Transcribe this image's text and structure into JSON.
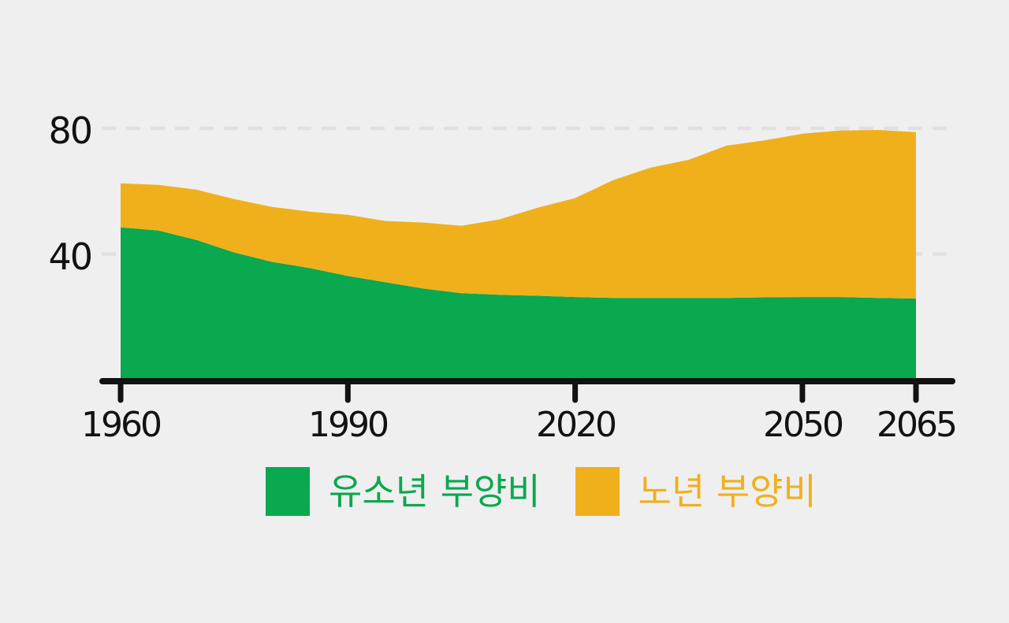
{
  "colors": {
    "background": "#efefef",
    "youth_green": "#0aa84f",
    "elderly_yellow": "#f0b01c",
    "axis_black": "#121212",
    "gridline_gray": "#e0e0e0"
  },
  "chart_data": {
    "type": "area",
    "stacked": true,
    "title": "",
    "xlabel": "",
    "ylabel": "",
    "x": [
      1960,
      1965,
      1970,
      1975,
      1980,
      1985,
      1990,
      1995,
      2000,
      2005,
      2010,
      2015,
      2020,
      2025,
      2030,
      2035,
      2040,
      2045,
      2050,
      2055,
      2060,
      2065
    ],
    "series": [
      {
        "name": "유소년 부양비",
        "color": "#0aa84f",
        "values": [
          48.5,
          47.5,
          44.5,
          40.5,
          37.5,
          35.5,
          33,
          31,
          29,
          27.5,
          27,
          26.7,
          26.3,
          26,
          26,
          26,
          26,
          26.2,
          26.3,
          26.3,
          26,
          25.8
        ]
      },
      {
        "name": "노년 부양비",
        "color": "#f0b01c",
        "values": [
          14,
          14.5,
          16,
          17,
          17.5,
          18,
          19.5,
          19.5,
          21,
          21.5,
          24,
          28,
          31.5,
          37.5,
          41.5,
          44,
          48.5,
          50,
          52,
          53,
          53.5,
          53
        ]
      }
    ],
    "x_ticks": [
      1960,
      1990,
      2020,
      2050,
      2065
    ],
    "y_ticks": [
      40,
      80
    ],
    "xlim": [
      1960,
      2065
    ],
    "ylim": [
      0,
      80
    ],
    "grid": "horizontal-dashed",
    "legend_position": "bottom-center"
  }
}
